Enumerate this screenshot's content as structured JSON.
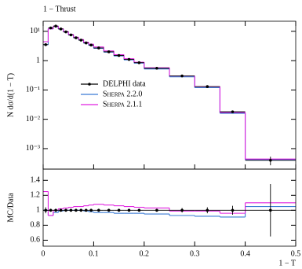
{
  "chart_data": [
    {
      "type": "histogram",
      "title": "1 − Thrust",
      "ylabel": "N dσ/d(1 − T)",
      "log_y": true,
      "legend": "center-left",
      "bins": [
        0,
        0.01,
        0.02,
        0.03,
        0.04,
        0.05,
        0.06,
        0.07,
        0.08,
        0.09,
        0.1,
        0.12,
        0.14,
        0.16,
        0.18,
        0.2,
        0.25,
        0.3,
        0.35,
        0.4,
        0.5
      ],
      "xlim": [
        0,
        0.5
      ],
      "ylim": [
        0.0002,
        22
      ],
      "yticks": [
        {
          "value": 10,
          "label": "10¹"
        },
        1,
        {
          "value": 0.1,
          "label": "10⁻¹"
        },
        {
          "value": 0.01,
          "label": "10⁻²"
        },
        {
          "value": 0.001,
          "label": "10⁻³"
        }
      ],
      "series": [
        {
          "name": "DELPHI data",
          "color": "#000000",
          "style": "points",
          "values": [
            3.5,
            13,
            15,
            12,
            9.5,
            7.5,
            6,
            5,
            4,
            3.4,
            2.7,
            2,
            1.5,
            1.1,
            0.85,
            0.55,
            0.3,
            0.13,
            0.018,
            0.0004
          ],
          "errors": [
            0.1,
            0.3,
            0.3,
            0.3,
            0.2,
            0.2,
            0.15,
            0.1,
            0.1,
            0.08,
            0.06,
            0.05,
            0.04,
            0.03,
            0.02,
            0.015,
            0.01,
            0.005,
            0.001,
            0.00013
          ]
        },
        {
          "name": "Sherpa 2.2.0",
          "color": "#3a7bd5",
          "style": "step",
          "values": [
            3.5,
            12.1,
            14.6,
            11.9,
            9.5,
            7.5,
            6,
            5,
            3.96,
            3.33,
            2.62,
            1.94,
            1.44,
            1.06,
            0.82,
            0.52,
            0.28,
            0.12,
            0.016,
            0.00042
          ]
        },
        {
          "name": "Sherpa 2.1.1",
          "color": "#e020e0",
          "style": "step",
          "values": [
            4.4,
            12.1,
            15,
            12.2,
            9.8,
            7.8,
            6.3,
            5.25,
            4.24,
            3.64,
            2.92,
            2.14,
            1.59,
            1.16,
            0.88,
            0.57,
            0.3,
            0.129,
            0.017,
            0.00044
          ]
        }
      ]
    },
    {
      "type": "histogram",
      "ylabel": "MC/Data",
      "xlabel": "1 − T",
      "bins": [
        0,
        0.01,
        0.02,
        0.03,
        0.04,
        0.05,
        0.06,
        0.07,
        0.08,
        0.09,
        0.1,
        0.12,
        0.14,
        0.16,
        0.18,
        0.2,
        0.25,
        0.3,
        0.35,
        0.4,
        0.5
      ],
      "xlim": [
        0,
        0.5
      ],
      "xticks": [
        0,
        0.1,
        0.2,
        0.3,
        0.4,
        0.5
      ],
      "ylim": [
        0.52,
        1.55
      ],
      "yticks": [
        0.6,
        0.8,
        1,
        1.2,
        1.4
      ],
      "series": [
        {
          "color": "#000000",
          "style": "points",
          "values": [
            1,
            1,
            1,
            1,
            1,
            1,
            1,
            1,
            1,
            1,
            1,
            1,
            1,
            1,
            1,
            1,
            1,
            1,
            1,
            1
          ],
          "errors": [
            0.04,
            0.02,
            0.02,
            0.02,
            0.02,
            0.02,
            0.02,
            0.02,
            0.02,
            0.02,
            0.02,
            0.02,
            0.02,
            0.02,
            0.02,
            0.02,
            0.03,
            0.04,
            0.06,
            0.35
          ]
        },
        {
          "color": "#3a7bd5",
          "style": "step",
          "values": [
            1,
            0.93,
            0.97,
            0.99,
            1,
            1,
            1,
            1,
            0.99,
            0.98,
            0.97,
            0.97,
            0.96,
            0.96,
            0.96,
            0.95,
            0.93,
            0.92,
            0.91,
            1.05
          ]
        },
        {
          "color": "#e020e0",
          "style": "step",
          "values": [
            1.25,
            0.93,
            1,
            1.02,
            1.03,
            1.04,
            1.05,
            1.05,
            1.06,
            1.07,
            1.08,
            1.07,
            1.06,
            1.05,
            1.04,
            1.03,
            0.99,
            0.99,
            0.96,
            1.1
          ]
        }
      ]
    }
  ]
}
